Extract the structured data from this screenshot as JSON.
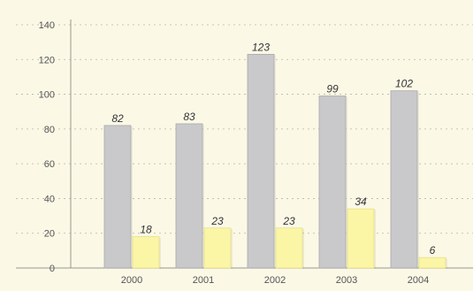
{
  "chart_data": {
    "type": "bar",
    "categories": [
      "2000",
      "2001",
      "2002",
      "2003",
      "2004"
    ],
    "series": [
      {
        "values": [
          82,
          83,
          123,
          99,
          102
        ],
        "color": "#c9c9cb"
      },
      {
        "values": [
          18,
          23,
          23,
          34,
          6
        ],
        "color": "#fbf6a6"
      }
    ],
    "data_labels": [
      [
        "82",
        "83",
        "123",
        "99",
        "102"
      ],
      [
        "18",
        "23",
        "23",
        "34",
        "6"
      ]
    ],
    "yticks": [
      "0",
      "20",
      "40",
      "60",
      "80",
      "100",
      "120",
      "140"
    ],
    "ylim": [
      0,
      140
    ],
    "grid": true,
    "legend": "none"
  }
}
